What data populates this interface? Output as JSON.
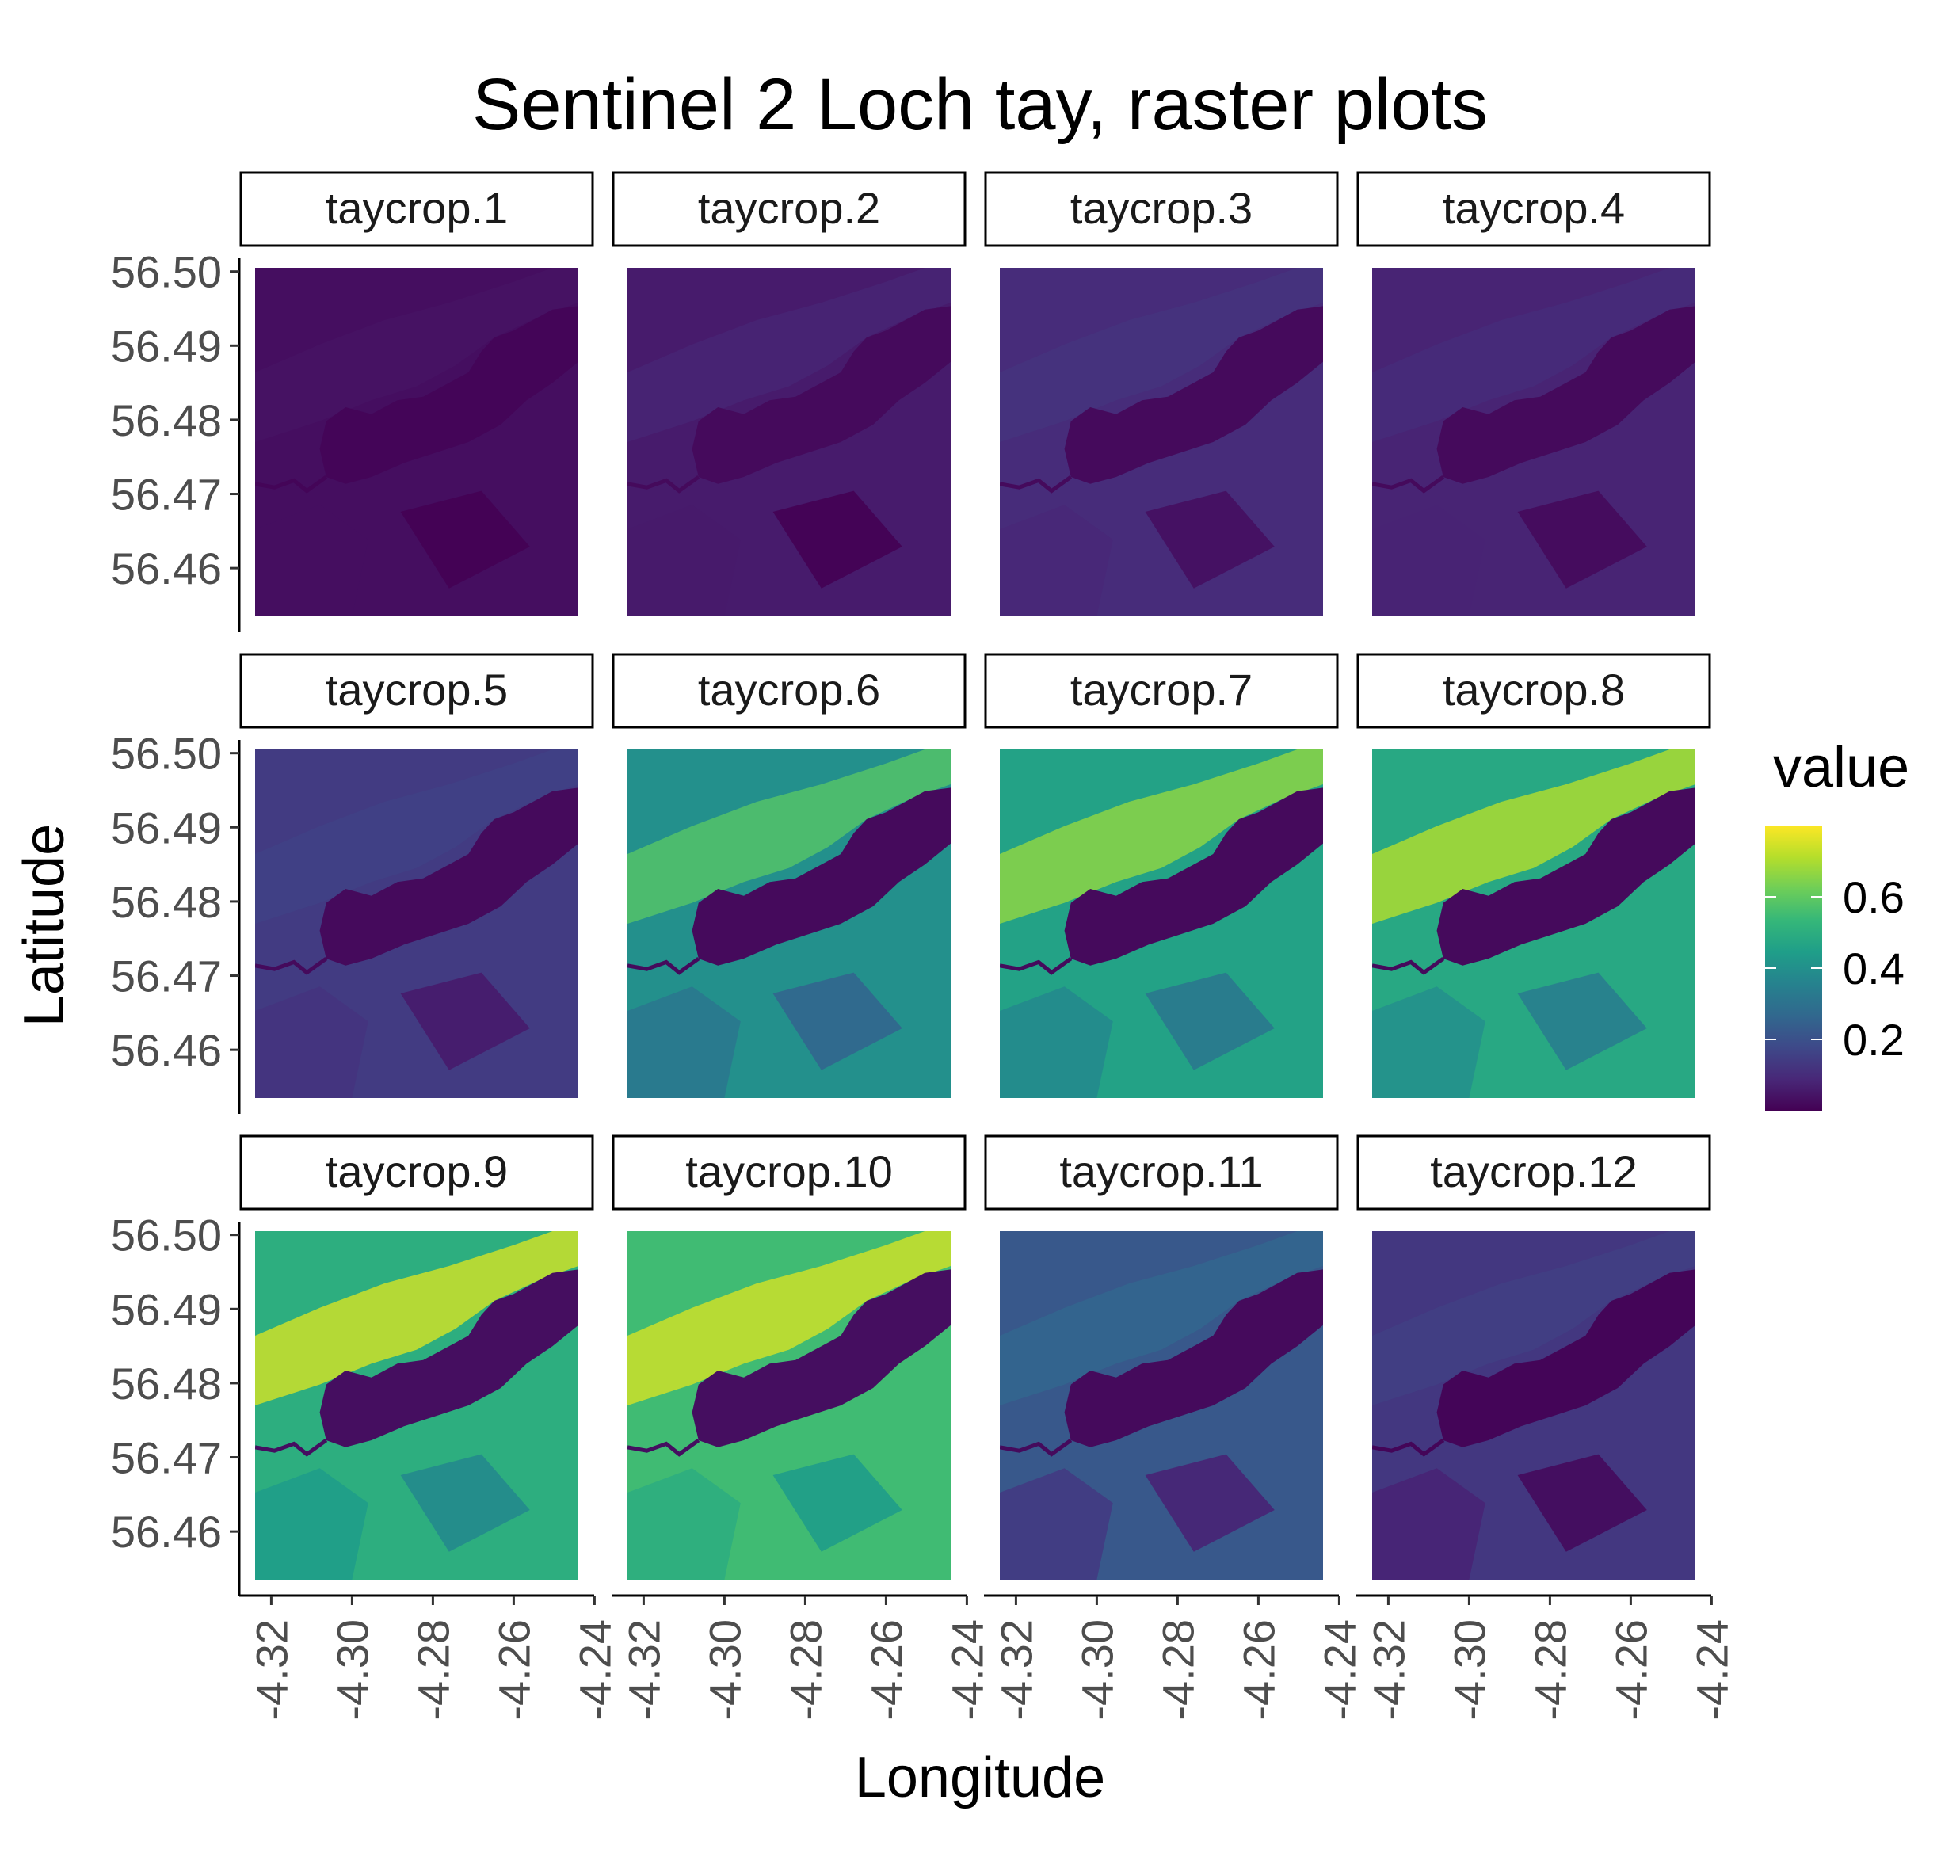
{
  "chart_data": {
    "type": "heatmap",
    "title": "Sentinel 2 Loch tay, raster plots",
    "xlabel": "Longitude",
    "ylabel": "Latitude",
    "x_ticks": [
      "-4.32",
      "-4.30",
      "-4.28",
      "-4.26",
      "-4.24"
    ],
    "y_ticks": [
      "56.50",
      "56.49",
      "56.48",
      "56.47",
      "56.46"
    ],
    "xlim": [
      -4.324,
      -4.244
    ],
    "ylim": [
      56.4535,
      56.5005
    ],
    "panels": [
      {
        "label": "taycrop.1",
        "land": 0.03,
        "water": 0.01,
        "ridge": 0.04,
        "south": 0.03
      },
      {
        "label": "taycrop.2",
        "land": 0.06,
        "water": 0.02,
        "ridge": 0.08,
        "south": 0.06
      },
      {
        "label": "taycrop.3",
        "land": 0.1,
        "water": 0.02,
        "ridge": 0.12,
        "south": 0.09
      },
      {
        "label": "taycrop.4",
        "land": 0.08,
        "water": 0.02,
        "ridge": 0.1,
        "south": 0.08
      },
      {
        "label": "taycrop.5",
        "land": 0.14,
        "water": 0.02,
        "ridge": 0.16,
        "south": 0.12
      },
      {
        "label": "taycrop.6",
        "land": 0.4,
        "water": 0.02,
        "ridge": 0.58,
        "south": 0.32
      },
      {
        "label": "taycrop.7",
        "land": 0.46,
        "water": 0.02,
        "ridge": 0.66,
        "south": 0.38
      },
      {
        "label": "taycrop.8",
        "land": 0.48,
        "water": 0.02,
        "ridge": 0.7,
        "south": 0.4
      },
      {
        "label": "taycrop.9",
        "land": 0.5,
        "water": 0.03,
        "ridge": 0.74,
        "south": 0.44
      },
      {
        "label": "taycrop.10",
        "land": 0.55,
        "water": 0.03,
        "ridge": 0.74,
        "south": 0.5
      },
      {
        "label": "taycrop.11",
        "land": 0.22,
        "water": 0.02,
        "ridge": 0.26,
        "south": 0.14
      },
      {
        "label": "taycrop.12",
        "land": 0.13,
        "water": 0.01,
        "ridge": 0.15,
        "south": 0.08
      }
    ],
    "legend": {
      "title": "value",
      "ticks": [
        0.2,
        0.4,
        0.6
      ],
      "tick_labels": [
        "0.2",
        "0.4",
        "0.6"
      ],
      "range": [
        0.0,
        0.8
      ],
      "placement": "right"
    },
    "palette": [
      "#440154",
      "#482878",
      "#3e4989",
      "#31688e",
      "#26828e",
      "#1f9e89",
      "#35b779",
      "#6ece58",
      "#b5de2b",
      "#fde725"
    ]
  }
}
